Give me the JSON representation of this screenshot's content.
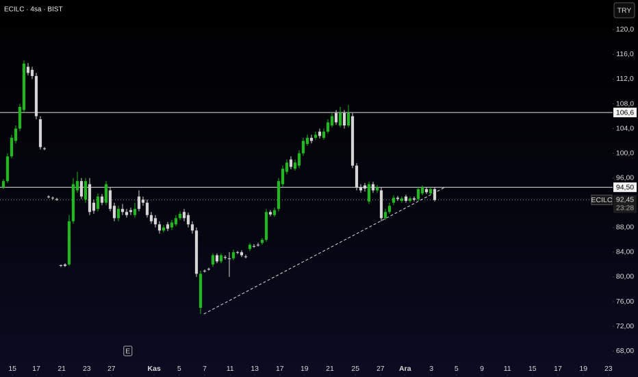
{
  "header": {
    "symbol": "ECILC · 4sa · BIST",
    "currency": "TRY"
  },
  "chart_data": {
    "type": "candlestick",
    "open": [
      94.5,
      95.5,
      99.5,
      102,
      104,
      107,
      114,
      113.5,
      112.5,
      105.5,
      100.8,
      93,
      92.8,
      92.6,
      81.9,
      82,
      82,
      89,
      94,
      95.5,
      92.5,
      95,
      92,
      91,
      93,
      92,
      94,
      91.5,
      89.5,
      91,
      90.5,
      90.8,
      90,
      93,
      92.5,
      92,
      90,
      89.5,
      88.5,
      87.5,
      88.5,
      88,
      88.5,
      89.5,
      90.5,
      90,
      88.5,
      87.5,
      75,
      81,
      81.3,
      82,
      83.5,
      82.5,
      83.2,
      83,
      83,
      84,
      84,
      83.3,
      84.5,
      85,
      85.2,
      85.5,
      86,
      90.5,
      90,
      91,
      95,
      97,
      99,
      97.5,
      98,
      100,
      101.5,
      102.5,
      102.5,
      103.5,
      102.5,
      103.5,
      104.5,
      106.5,
      104.5,
      106.5,
      104.5,
      106,
      98,
      94.5,
      94.8,
      92.2,
      95,
      94,
      94,
      89.5,
      90.5,
      92,
      92.8,
      92.3,
      93,
      92.3,
      92.7,
      92.6,
      93.5,
      94.2,
      93.5,
      94.2
    ],
    "high": [
      95.8,
      100,
      103,
      104.5,
      108,
      115,
      114.6,
      114,
      113,
      106,
      101,
      93.2,
      93,
      92.8,
      82,
      82.2,
      90,
      96,
      97,
      96,
      96,
      96,
      92.5,
      93.5,
      93.4,
      95.5,
      94.5,
      92,
      91.5,
      91.8,
      91,
      91.2,
      92,
      94,
      93,
      92.5,
      90.5,
      90,
      89,
      88.4,
      88.9,
      89.2,
      90,
      90.6,
      91,
      90.4,
      89,
      88,
      81,
      81.2,
      81.5,
      83.8,
      83.8,
      83.8,
      83.5,
      84,
      84.4,
      84.2,
      84.3,
      83.6,
      85.5,
      85.3,
      85.5,
      86.3,
      91,
      90.8,
      91.2,
      96,
      98,
      99,
      99.5,
      99,
      100.5,
      102.5,
      103,
      103,
      103.5,
      104,
      104,
      105.5,
      106.5,
      107,
      107.5,
      107,
      107.8,
      106.5,
      98.4,
      95,
      95.2,
      95.4,
      95.4,
      94.9,
      94.5,
      91,
      92,
      93.2,
      93.1,
      93,
      93.3,
      93,
      93,
      94.6,
      94.8,
      94.5,
      94.5,
      94.5
    ],
    "low": [
      94.2,
      95.2,
      99.2,
      101.6,
      103.6,
      106.6,
      112.6,
      112,
      105.5,
      100.6,
      100.5,
      92.7,
      92.5,
      92.3,
      81.6,
      81.6,
      81.8,
      88.6,
      93.6,
      92.6,
      92,
      90,
      90.2,
      90.6,
      91.6,
      91.6,
      90.6,
      89,
      89,
      90,
      89.6,
      90,
      89.6,
      90.6,
      91.5,
      89.6,
      88.6,
      88,
      87,
      87.2,
      87.4,
      87.6,
      88.2,
      89.2,
      89,
      88,
      87,
      80,
      74,
      80.7,
      81,
      81.6,
      82.2,
      82.2,
      82.8,
      80,
      82.7,
      83.7,
      83.2,
      83,
      84.2,
      84.7,
      84.9,
      85.2,
      85.7,
      89.8,
      89.7,
      90.6,
      94.6,
      96.6,
      97.4,
      97.2,
      97.6,
      99.6,
      101.2,
      101.6,
      102.2,
      102.4,
      102.2,
      103.2,
      104.2,
      104.6,
      104.2,
      104,
      104.2,
      97.6,
      94,
      93.6,
      93.8,
      91.8,
      93.6,
      93.6,
      89,
      89.2,
      90.2,
      91.6,
      92.3,
      92,
      92,
      92,
      92.2,
      92.3,
      93.2,
      93.4,
      93.2,
      92.2
    ],
    "close": [
      95.5,
      99.5,
      102.5,
      104,
      107.5,
      114.5,
      113,
      112.5,
      106,
      101,
      100.7,
      92.9,
      92.7,
      92.5,
      81.8,
      81.8,
      89,
      95,
      95.5,
      93,
      95.5,
      90.5,
      90.7,
      93,
      92,
      95,
      91,
      89.5,
      91,
      90.5,
      90,
      90.5,
      91,
      91,
      92,
      90,
      89,
      88.5,
      87.5,
      88,
      87.8,
      88.8,
      89.5,
      90.2,
      89.5,
      88.5,
      87.5,
      80.5,
      80.5,
      80.9,
      81.2,
      83.5,
      82.5,
      83.5,
      83.1,
      82.9,
      84,
      83.9,
      83.5,
      83.2,
      85.2,
      84.9,
      85.1,
      86,
      90.5,
      90.1,
      90.8,
      95.5,
      97.5,
      98.5,
      97.8,
      98.5,
      100,
      102,
      102.5,
      102,
      103,
      102.8,
      103.5,
      105,
      106,
      105,
      106.5,
      104.5,
      106.5,
      98,
      94.5,
      94,
      94.3,
      95,
      94,
      94.5,
      89.5,
      90.5,
      91.5,
      92.8,
      92.6,
      92.7,
      92.3,
      92.7,
      92.5,
      94.2,
      94.5,
      93.7,
      94.2,
      92.45
    ],
    "up_color": "#1fb81f",
    "down_color": "#d4d4d4",
    "xlim": [
      -0.83,
      148.33
    ],
    "xticks": [
      {
        "value": 2.2,
        "label": "15"
      },
      {
        "value": 8,
        "label": "17"
      },
      {
        "value": 14.2,
        "label": "21"
      },
      {
        "value": 20.3,
        "label": "23"
      },
      {
        "value": 26.3,
        "label": "27"
      },
      {
        "value": 36.7,
        "label": "Kas"
      },
      {
        "value": 42.8,
        "label": "5"
      },
      {
        "value": 49,
        "label": "7"
      },
      {
        "value": 55.2,
        "label": "11"
      },
      {
        "value": 61.2,
        "label": "13"
      },
      {
        "value": 67.3,
        "label": "17"
      },
      {
        "value": 73.3,
        "label": "19"
      },
      {
        "value": 79.5,
        "label": "21"
      },
      {
        "value": 85.7,
        "label": "25"
      },
      {
        "value": 91.8,
        "label": "27"
      },
      {
        "value": 97.8,
        "label": "Ara"
      },
      {
        "value": 104.2,
        "label": "3"
      },
      {
        "value": 110.3,
        "label": "5"
      },
      {
        "value": 116.5,
        "label": "9"
      },
      {
        "value": 122.7,
        "label": "11"
      },
      {
        "value": 128.8,
        "label": "15"
      },
      {
        "value": 135,
        "label": "17"
      },
      {
        "value": 141.2,
        "label": "19"
      },
      {
        "value": 147.3,
        "label": "23"
      }
    ],
    "ylim": [
      63.8,
      124.8
    ],
    "yticks": [
      {
        "value": 120,
        "label": "120,0"
      },
      {
        "value": 116,
        "label": "116,0"
      },
      {
        "value": 112,
        "label": "112,0"
      },
      {
        "value": 108,
        "label": "108,0"
      },
      {
        "value": 104,
        "label": "104,0"
      },
      {
        "value": 100,
        "label": "100,0"
      },
      {
        "value": 96,
        "label": "96,00"
      },
      {
        "value": 88,
        "label": "88,00"
      },
      {
        "value": 84,
        "label": "84,00"
      },
      {
        "value": 80,
        "label": "80,00"
      },
      {
        "value": 76,
        "label": "76,00"
      },
      {
        "value": 72,
        "label": "72,00"
      },
      {
        "value": 68,
        "label": "68,00"
      }
    ],
    "levels": [
      {
        "value": 106.6,
        "label": "106,6"
      },
      {
        "value": 94.5,
        "label": "94,50"
      }
    ],
    "last_price": {
      "symbol": "ECILC",
      "value": 92.45,
      "label": "92,45",
      "countdown": "23:28"
    },
    "trendline": {
      "x": [
        48.8,
        107.5
      ],
      "y": [
        74,
        94.5
      ]
    },
    "event_marker": {
      "x": 30.3,
      "label": "E"
    }
  }
}
